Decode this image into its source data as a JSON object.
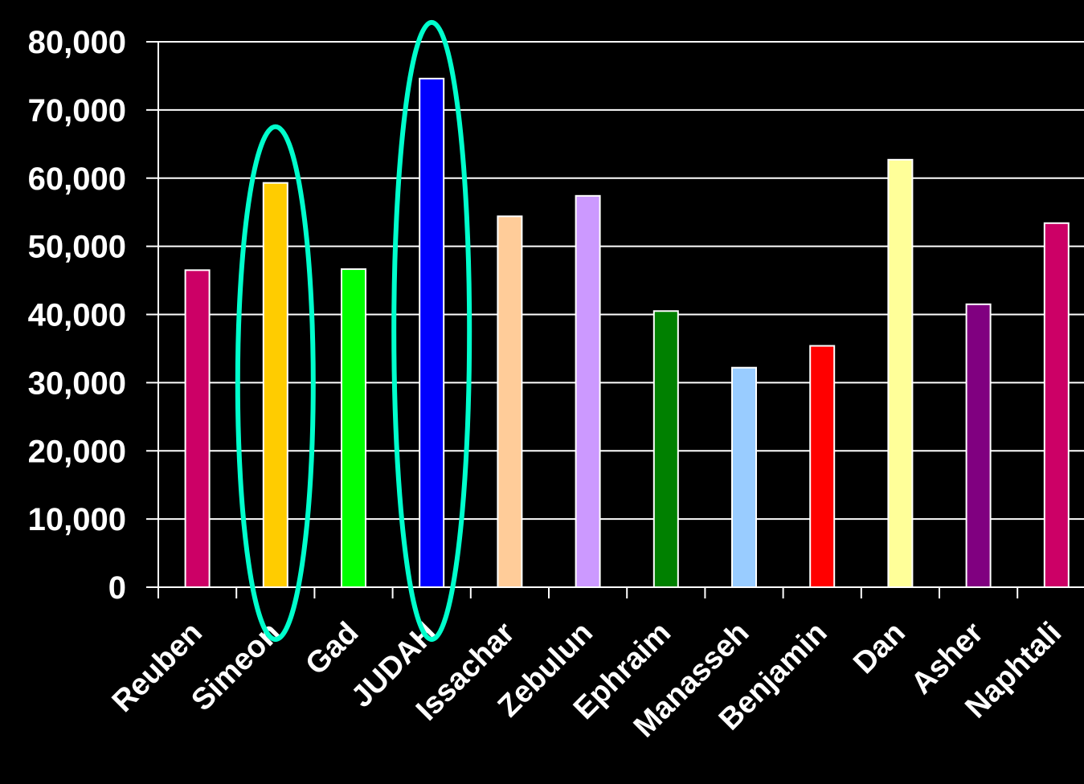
{
  "chart_data": {
    "type": "bar",
    "title": "",
    "xlabel": "",
    "ylabel": "",
    "categories": [
      "Reuben",
      "Simeon",
      "Gad",
      "JUDAH",
      "Issachar",
      "Zebulun",
      "Ephraim",
      "Manasseh",
      "Benjamin",
      "Dan",
      "Asher",
      "Naphtali"
    ],
    "values": [
      46500,
      59300,
      46650,
      74600,
      54400,
      57400,
      40500,
      32200,
      35400,
      62700,
      41500,
      53400
    ],
    "bar_colors": [
      "#cc0066",
      "#ffcc00",
      "#00ff00",
      "#0000ff",
      "#ffcc99",
      "#cc99ff",
      "#008000",
      "#99ccff",
      "#ff0000",
      "#ffff99",
      "#800080",
      "#cc0066"
    ],
    "ylim": [
      0,
      80000
    ],
    "y_ticks": [
      0,
      10000,
      20000,
      30000,
      40000,
      50000,
      60000,
      70000,
      80000
    ],
    "y_tick_labels": [
      "0",
      "10,000",
      "20,000",
      "30,000",
      "40,000",
      "50,000",
      "60,000",
      "70,000",
      "80,000"
    ],
    "grid": true,
    "legend": "none",
    "highlighted": [
      "Simeon",
      "JUDAH"
    ],
    "highlight_color": "#00ffcc",
    "background_color": "#000000",
    "text_color": "#ffffff"
  }
}
